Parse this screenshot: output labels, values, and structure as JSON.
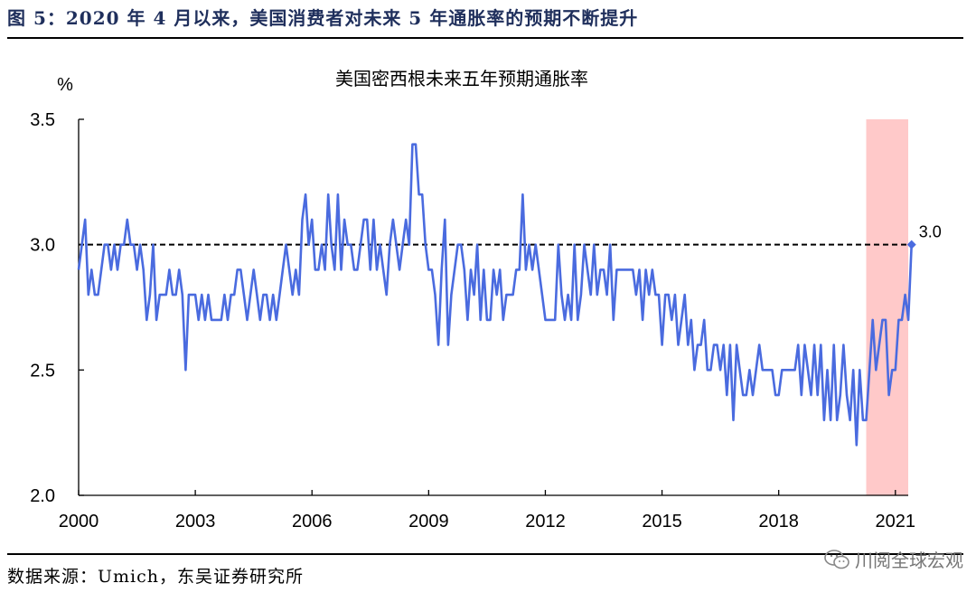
{
  "header": {
    "figure_title": "图 5：2020 年 4 月以来，美国消费者对未来 5 年通胀率的预期不断提升"
  },
  "footer": {
    "source": "数据来源：Umich，东吴证券研究所",
    "watermark": "川阅全球宏观",
    "watermark_icon": "wechat-icon"
  },
  "chart_data": {
    "type": "line",
    "title": "美国密西根未来五年预期通胀率",
    "ylabel": "%",
    "xlabel": "",
    "ylim": [
      2.0,
      3.5
    ],
    "yticks": [
      "2.0",
      "2.5",
      "3.0",
      "3.5"
    ],
    "xlim": [
      2000.0,
      2021.33
    ],
    "xticks": [
      "2000",
      "2003",
      "2006",
      "2009",
      "2012",
      "2015",
      "2018",
      "2021"
    ],
    "grid": false,
    "reference_line": {
      "y": 3.0,
      "style": "dashed"
    },
    "highlight_region": {
      "start": 2020.25,
      "end": 2021.33,
      "color": "#ffc9c9"
    },
    "last_point_label": "3.0",
    "colors": {
      "line": "#4a6bdf",
      "highlight": "#ffc9c9"
    },
    "series": [
      {
        "start": "2000-01",
        "frequency": "monthly",
        "values": [
          2.9,
          3.0,
          3.1,
          2.8,
          2.9,
          2.8,
          2.8,
          2.9,
          3.0,
          3.0,
          2.9,
          3.0,
          2.9,
          3.0,
          3.0,
          3.1,
          3.0,
          3.0,
          2.9,
          3.0,
          2.9,
          2.7,
          2.8,
          3.0,
          2.7,
          2.8,
          2.8,
          2.8,
          2.9,
          2.8,
          2.8,
          2.9,
          2.8,
          2.5,
          2.8,
          2.8,
          2.8,
          2.7,
          2.8,
          2.7,
          2.8,
          2.7,
          2.7,
          2.7,
          2.7,
          2.8,
          2.7,
          2.8,
          2.8,
          2.9,
          2.9,
          2.8,
          2.7,
          2.8,
          2.9,
          2.8,
          2.7,
          2.8,
          2.8,
          2.7,
          2.8,
          2.7,
          2.8,
          2.9,
          3.0,
          2.9,
          2.8,
          2.9,
          2.8,
          3.1,
          3.2,
          3.0,
          3.1,
          2.9,
          2.9,
          3.0,
          2.9,
          3.2,
          3.0,
          2.9,
          3.2,
          2.9,
          3.1,
          3.0,
          3.0,
          2.9,
          2.9,
          3.0,
          3.1,
          3.1,
          2.9,
          3.1,
          2.9,
          3.0,
          2.9,
          2.8,
          3.0,
          3.1,
          3.0,
          2.9,
          3.0,
          3.1,
          3.0,
          3.4,
          3.4,
          3.2,
          3.2,
          3.0,
          2.9,
          2.9,
          2.8,
          2.6,
          2.9,
          3.1,
          2.6,
          2.8,
          2.9,
          3.0,
          3.0,
          2.9,
          2.7,
          2.9,
          2.8,
          3.0,
          2.7,
          2.9,
          2.7,
          2.7,
          2.9,
          2.8,
          2.9,
          2.7,
          2.8,
          2.8,
          2.8,
          2.9,
          2.9,
          3.2,
          2.9,
          3.0,
          2.9,
          3.0,
          2.9,
          2.8,
          2.7,
          2.7,
          2.7,
          2.7,
          3.0,
          2.8,
          2.7,
          2.8,
          2.7,
          3.0,
          2.7,
          2.8,
          3.0,
          2.9,
          2.8,
          3.0,
          2.8,
          2.9,
          2.9,
          2.8,
          3.0,
          2.7,
          2.9,
          2.9,
          2.9,
          2.9,
          2.9,
          2.9,
          2.8,
          2.9,
          2.7,
          2.9,
          2.8,
          2.9,
          2.8,
          2.8,
          2.6,
          2.8,
          2.8,
          2.7,
          2.8,
          2.6,
          2.7,
          2.8,
          2.6,
          2.7,
          2.5,
          2.6,
          2.6,
          2.7,
          2.5,
          2.5,
          2.6,
          2.6,
          2.5,
          2.6,
          2.4,
          2.6,
          2.3,
          2.6,
          2.5,
          2.4,
          2.4,
          2.5,
          2.4,
          2.5,
          2.6,
          2.5,
          2.5,
          2.5,
          2.5,
          2.4,
          2.4,
          2.5,
          2.5,
          2.5,
          2.5,
          2.5,
          2.6,
          2.4,
          2.6,
          2.5,
          2.4,
          2.6,
          2.4,
          2.6,
          2.3,
          2.5,
          2.3,
          2.6,
          2.3,
          2.4,
          2.6,
          2.4,
          2.3,
          2.5,
          2.2,
          2.5,
          2.3,
          2.3,
          2.5,
          2.7,
          2.5,
          2.6,
          2.7,
          2.7,
          2.4,
          2.5,
          2.5,
          2.7,
          2.7,
          2.8,
          2.7,
          3.0
        ]
      }
    ]
  }
}
